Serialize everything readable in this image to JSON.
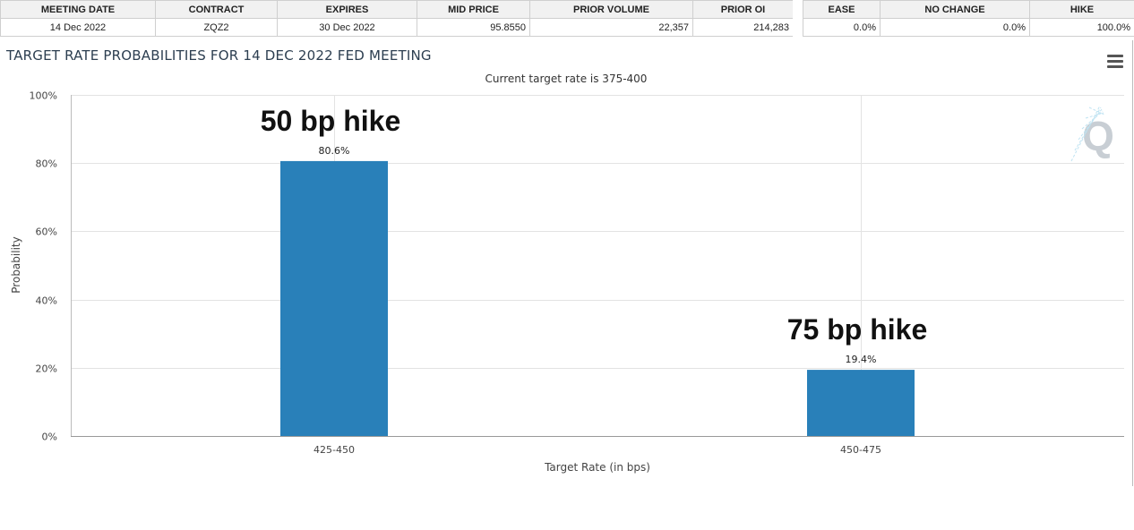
{
  "contract_table": {
    "headers": [
      "MEETING DATE",
      "CONTRACT",
      "EXPIRES",
      "MID PRICE",
      "PRIOR VOLUME",
      "PRIOR OI"
    ],
    "row": [
      "14 Dec 2022",
      "ZQZ2",
      "30 Dec 2022",
      "95.8550",
      "22,357",
      "214,283"
    ]
  },
  "probability_table": {
    "headers": [
      "EASE",
      "NO CHANGE",
      "HIKE"
    ],
    "row": [
      "0.0%",
      "0.0%",
      "100.0%"
    ]
  },
  "chart_data": {
    "type": "bar",
    "title": "TARGET RATE PROBABILITIES FOR 14 DEC 2022 FED MEETING",
    "subtitle": "Current target rate is 375-400",
    "xlabel": "Target Rate (in bps)",
    "ylabel": "Probability",
    "categories": [
      "425-450",
      "450-475"
    ],
    "values": [
      80.6,
      19.4
    ],
    "data_labels": [
      "80.6%",
      "19.4%"
    ],
    "annotations": [
      "50 bp hike",
      "75 bp hike"
    ],
    "ylim": [
      0,
      100
    ],
    "yticks": [
      0,
      20,
      40,
      60,
      80,
      100
    ],
    "ytick_labels": [
      "0%",
      "20%",
      "40%",
      "60%",
      "80%",
      "100%"
    ],
    "grid": true,
    "bar_color": "#2980b9",
    "legend": "none"
  },
  "watermark": "Q"
}
